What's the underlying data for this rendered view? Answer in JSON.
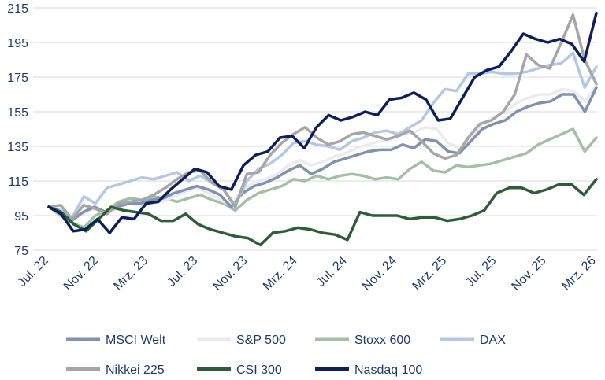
{
  "chart_data": {
    "type": "line",
    "title": "",
    "xlabel": "",
    "ylabel": "",
    "ylim": [
      75,
      215
    ],
    "yticks": [
      75,
      95,
      115,
      135,
      155,
      175,
      195,
      215
    ],
    "xtick_labels": [
      "Jul. 22",
      "Nov. 22",
      "Mrz. 23",
      "Jul. 23",
      "Nov. 23",
      "Mrz. 24",
      "Jul. 24",
      "Nov. 24",
      "Mrz. 25",
      "Jul. 25",
      "Nov. 25",
      "Mrz. 26"
    ],
    "grid": "horizontal",
    "legend_position": "bottom",
    "series": [
      {
        "name": "MSCI Welt",
        "color": "#7f93b0",
        "values": [
          100,
          98,
          92,
          97,
          100,
          97,
          100,
          102,
          102,
          104,
          105,
          108,
          110,
          112,
          110,
          107,
          100,
          108,
          112,
          114,
          117,
          121,
          124,
          119,
          122,
          126,
          128,
          130,
          132,
          133,
          133,
          136,
          134,
          139,
          138,
          132,
          131,
          138,
          145,
          148,
          150,
          155,
          158,
          160,
          161,
          165,
          165,
          155,
          169
        ]
      },
      {
        "name": "S&P 500",
        "color": "#ebebeb",
        "values": [
          100,
          97,
          93,
          96,
          99,
          96,
          99,
          102,
          101,
          103,
          103,
          106,
          109,
          111,
          108,
          104,
          101,
          110,
          114,
          116,
          119,
          124,
          127,
          124,
          126,
          129,
          131,
          134,
          136,
          138,
          139,
          142,
          143,
          146,
          145,
          137,
          134,
          140,
          148,
          152,
          155,
          160,
          163,
          165,
          165,
          168,
          167,
          161,
          170
        ]
      },
      {
        "name": "Stoxx 600",
        "color": "#a4c0a4",
        "values": [
          100,
          95,
          91,
          88,
          95,
          98,
          103,
          105,
          104,
          106,
          105,
          103,
          105,
          107,
          104,
          102,
          98,
          104,
          108,
          110,
          112,
          116,
          115,
          118,
          116,
          118,
          119,
          118,
          116,
          117,
          116,
          122,
          126,
          121,
          120,
          124,
          123,
          124,
          125,
          127,
          129,
          131,
          136,
          139,
          142,
          145,
          132,
          140
        ]
      },
      {
        "name": "DAX",
        "color": "#b4c8e6",
        "values": [
          100,
          98,
          94,
          106,
          102,
          111,
          113,
          115,
          117,
          116,
          118,
          120,
          115,
          118,
          114,
          110,
          101,
          115,
          122,
          125,
          130,
          137,
          138,
          136,
          135,
          133,
          138,
          140,
          143,
          144,
          142,
          146,
          150,
          160,
          168,
          167,
          177,
          177,
          178,
          177,
          177,
          178,
          180,
          182,
          183,
          189,
          169,
          181
        ]
      },
      {
        "name": "Nikkei 225",
        "color": "#a6a6a6",
        "values": [
          100,
          101,
          93,
          101,
          99,
          96,
          102,
          103,
          104,
          107,
          111,
          116,
          120,
          121,
          114,
          110,
          100,
          119,
          120,
          130,
          137,
          142,
          146,
          140,
          136,
          138,
          142,
          143,
          141,
          139,
          141,
          144,
          138,
          131,
          128,
          130,
          140,
          148,
          150,
          155,
          165,
          188,
          182,
          180,
          195,
          211,
          185,
          171
        ]
      },
      {
        "name": "CSI 300",
        "color": "#2e5e38",
        "values": [
          100,
          97,
          90,
          86,
          93,
          100,
          98,
          97,
          96,
          92,
          92,
          96,
          90,
          87,
          85,
          83,
          82,
          78,
          85,
          86,
          88,
          87,
          85,
          84,
          81,
          97,
          95,
          95,
          95,
          93,
          94,
          94,
          92,
          93,
          95,
          98,
          108,
          111,
          111,
          108,
          110,
          113,
          113,
          107,
          116
        ]
      },
      {
        "name": "Nasdaq 100",
        "color": "#0c1f5c",
        "values": [
          100,
          96,
          86,
          87,
          93,
          85,
          94,
          93,
          102,
          103,
          110,
          116,
          122,
          120,
          112,
          110,
          124,
          130,
          132,
          140,
          141,
          134,
          146,
          153,
          150,
          152,
          155,
          153,
          162,
          163,
          166,
          162,
          150,
          151,
          163,
          175,
          179,
          181,
          190,
          200,
          197,
          195,
          197,
          194,
          184,
          212
        ]
      }
    ]
  }
}
